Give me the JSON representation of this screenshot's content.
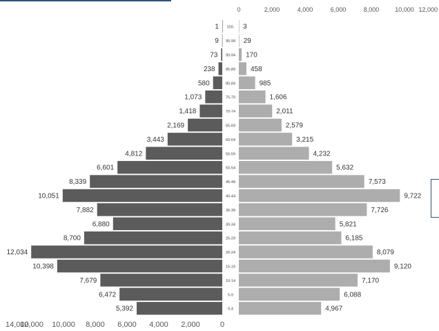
{
  "chart_data": {
    "type": "bar",
    "orientation": "horizontal",
    "layout": "population-pyramid",
    "title": "",
    "xlabel": "",
    "ylabel": "",
    "categories": [
      "100-",
      "95-99",
      "90-94",
      "85-89",
      "80-84",
      "75-79",
      "70-74",
      "65-69",
      "60-64",
      "55-59",
      "50-54",
      "45-49",
      "40-44",
      "35-39",
      "30-34",
      "25-29",
      "20-24",
      "15-19",
      "10-14",
      "5-9",
      "0-4"
    ],
    "series": [
      {
        "side": "left",
        "color": "#5b5b5b",
        "values": [
          1,
          9,
          73,
          238,
          580,
          1073,
          1418,
          2169,
          3443,
          4812,
          6601,
          8339,
          10051,
          7882,
          6880,
          8700,
          12034,
          10398,
          7679,
          6472,
          5392
        ],
        "labels": [
          "1",
          "9",
          "73",
          "238",
          "580",
          "1,073",
          "1,418",
          "2,169",
          "3,443",
          "4,812",
          "6,601",
          "8,339",
          "10,051",
          "7,882",
          "6,880",
          "8,700",
          "12,034",
          "10,398",
          "7,679",
          "6,472",
          "5,392"
        ]
      },
      {
        "side": "right",
        "color": "#adadad",
        "values": [
          3,
          29,
          170,
          458,
          985,
          1606,
          2011,
          2579,
          3215,
          4232,
          5632,
          7573,
          9722,
          7726,
          5821,
          6185,
          8079,
          9120,
          7170,
          6088,
          4967
        ],
        "labels": [
          "3",
          "29",
          "170",
          "458",
          "985",
          "1,606",
          "2,011",
          "2,579",
          "3,215",
          "4,232",
          "5,632",
          "7,573",
          "9,722",
          "7,726",
          "5,821",
          "6,185",
          "8,079",
          "9,120",
          "7,170",
          "6,088",
          "4,967"
        ]
      }
    ],
    "left_axis": {
      "range": [
        0,
        14000
      ],
      "ticks": [
        "14,000",
        "12,000",
        "10,000",
        "8,000",
        "6,000",
        "4,000",
        "2,000",
        "0"
      ],
      "position": "bottom"
    },
    "right_axis": {
      "range": [
        0,
        12000
      ],
      "ticks": [
        "0",
        "2,000",
        "4,000",
        "6,000",
        "8,000",
        "10,000",
        "12,000"
      ],
      "position": "top"
    },
    "grid": false,
    "legend": "none"
  }
}
